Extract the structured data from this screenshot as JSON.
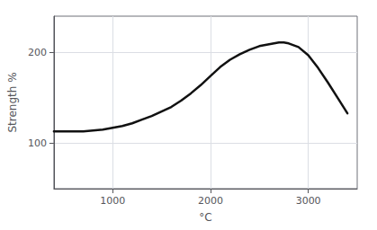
{
  "chart_data": {
    "type": "line",
    "x": [
      400,
      500,
      600,
      700,
      800,
      900,
      1000,
      1100,
      1200,
      1300,
      1400,
      1500,
      1600,
      1700,
      1800,
      1900,
      2000,
      2100,
      2200,
      2300,
      2400,
      2500,
      2600,
      2700,
      2750,
      2800,
      2900,
      3000,
      3100,
      3200,
      3300,
      3400
    ],
    "values": [
      113,
      113,
      113,
      113,
      114,
      115,
      117,
      119,
      122,
      126,
      130,
      135,
      140,
      147,
      155,
      164,
      174,
      184,
      192,
      198,
      203,
      207,
      209,
      211,
      211,
      210,
      206,
      197,
      183,
      167,
      150,
      133
    ],
    "color": "#111111",
    "xlabel": "°C",
    "ylabel": "Strength %",
    "xlim": [
      400,
      3500
    ],
    "ylim": [
      50,
      240
    ],
    "xticks": [
      1000,
      2000,
      3000
    ],
    "yticks": [
      100,
      200
    ],
    "grid": true
  }
}
